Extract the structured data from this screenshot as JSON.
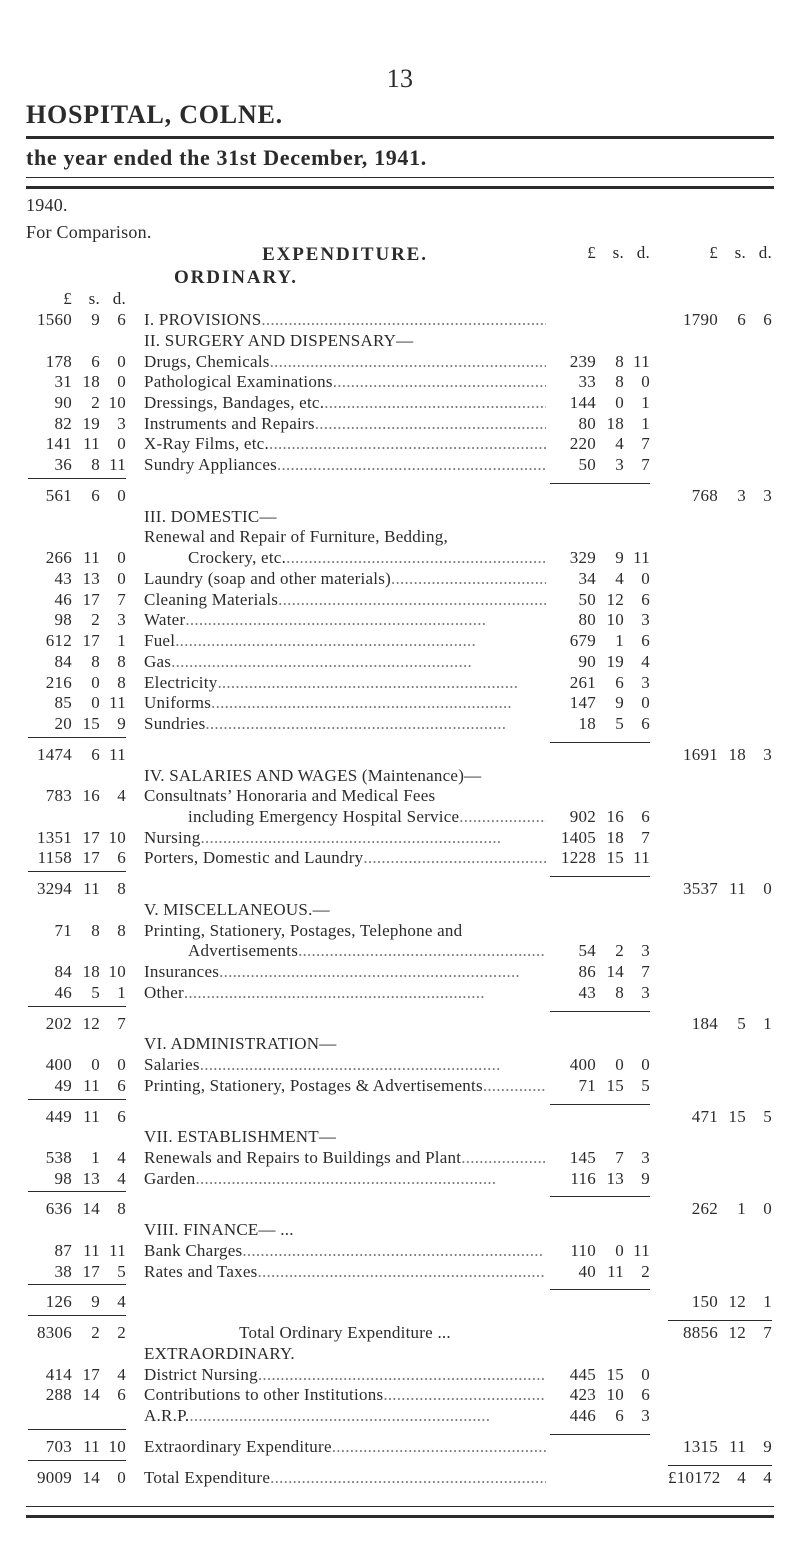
{
  "page_number": "13",
  "title_left": "HOSPITAL, COLNE.",
  "title_year": "the year ended the 31st December, 1941.",
  "meta_year": "1940.",
  "meta_compare": "For Comparison.",
  "hdr_expenditure": "EXPENDITURE.",
  "hdr_ordinary": "ORDINARY.",
  "col_L": "£",
  "col_s": "s.",
  "col_d": "d.",
  "sectionsLeft": [
    {
      "L": "1560",
      "s": "9",
      "d": "6"
    },
    {
      "L": "178",
      "s": "6",
      "d": "0"
    },
    {
      "L": "31",
      "s": "18",
      "d": "0"
    },
    {
      "L": "90",
      "s": "2",
      "d": "10"
    },
    {
      "L": "82",
      "s": "19",
      "d": "3"
    },
    {
      "L": "141",
      "s": "11",
      "d": "0"
    },
    {
      "L": "36",
      "s": "8",
      "d": "11"
    },
    {
      "L": "561",
      "s": "6",
      "d": "0",
      "rule": true
    },
    {
      "L": "266",
      "s": "11",
      "d": "0"
    },
    {
      "L": "43",
      "s": "13",
      "d": "0"
    },
    {
      "L": "46",
      "s": "17",
      "d": "7"
    },
    {
      "L": "98",
      "s": "2",
      "d": "3"
    },
    {
      "L": "612",
      "s": "17",
      "d": "1"
    },
    {
      "L": "84",
      "s": "8",
      "d": "8"
    },
    {
      "L": "216",
      "s": "0",
      "d": "8"
    },
    {
      "L": "85",
      "s": "0",
      "d": "11"
    },
    {
      "L": "20",
      "s": "15",
      "d": "9"
    },
    {
      "L": "1474",
      "s": "6",
      "d": "11",
      "rule": true
    },
    {
      "L": "783",
      "s": "16",
      "d": "4"
    },
    {
      "L": "1351",
      "s": "17",
      "d": "10"
    },
    {
      "L": "1158",
      "s": "17",
      "d": "6"
    },
    {
      "L": "3294",
      "s": "11",
      "d": "8",
      "rule": true
    },
    {
      "L": "71",
      "s": "8",
      "d": "8"
    },
    {
      "L": "84",
      "s": "18",
      "d": "10"
    },
    {
      "L": "46",
      "s": "5",
      "d": "1"
    },
    {
      "L": "202",
      "s": "12",
      "d": "7",
      "rule": true
    },
    {
      "L": "400",
      "s": "0",
      "d": "0"
    },
    {
      "L": "49",
      "s": "11",
      "d": "6"
    },
    {
      "L": "449",
      "s": "11",
      "d": "6",
      "rule": true
    },
    {
      "L": "538",
      "s": "1",
      "d": "4"
    },
    {
      "L": "98",
      "s": "13",
      "d": "4"
    },
    {
      "L": "636",
      "s": "14",
      "d": "8",
      "rule": true
    },
    {
      "L": "87",
      "s": "11",
      "d": "11"
    },
    {
      "L": "38",
      "s": "17",
      "d": "5"
    },
    {
      "L": "126",
      "s": "9",
      "d": "4",
      "rule": true
    },
    {
      "L": "8306",
      "s": "2",
      "d": "2",
      "rule": true
    },
    {
      "L": "414",
      "s": "17",
      "d": "4"
    },
    {
      "L": "288",
      "s": "14",
      "d": "6"
    },
    {
      "L": "703",
      "s": "11",
      "d": "10",
      "rule": true
    },
    {
      "L": "9009",
      "s": "14",
      "d": "0",
      "rule": true
    }
  ],
  "sections": {
    "I": {
      "head": "I.  PROVISIONS",
      "total": {
        "L": "1790",
        "s": "6",
        "d": "6"
      }
    },
    "II": {
      "head": "II.  SURGERY AND DISPENSARY—",
      "rows": [
        {
          "label": "Drugs, Chemicals",
          "L": "239",
          "s": "8",
          "d": "11"
        },
        {
          "label": "Pathological Examinations",
          "L": "33",
          "s": "8",
          "d": "0"
        },
        {
          "label": "Dressings, Bandages, etc.",
          "L": "144",
          "s": "0",
          "d": "1"
        },
        {
          "label": "Instruments and Repairs",
          "L": "80",
          "s": "18",
          "d": "1"
        },
        {
          "label": "X-Ray Films, etc.",
          "L": "220",
          "s": "4",
          "d": "7"
        },
        {
          "label": "Sundry Appliances",
          "L": "50",
          "s": "3",
          "d": "7"
        }
      ],
      "total": {
        "L": "768",
        "s": "3",
        "d": "3"
      }
    },
    "III": {
      "head": "III.  DOMESTIC—",
      "sub": "Renewal and Repair of Furniture, Bedding,",
      "rows": [
        {
          "label": "Crockery, etc.",
          "indent": 1,
          "L": "329",
          "s": "9",
          "d": "11"
        },
        {
          "label": "Laundry (soap and other materials)",
          "L": "34",
          "s": "4",
          "d": "0"
        },
        {
          "label": "Cleaning Materials",
          "L": "50",
          "s": "12",
          "d": "6"
        },
        {
          "label": "Water",
          "L": "80",
          "s": "10",
          "d": "3"
        },
        {
          "label": "Fuel",
          "L": "679",
          "s": "1",
          "d": "6"
        },
        {
          "label": "Gas",
          "L": "90",
          "s": "19",
          "d": "4"
        },
        {
          "label": "Electricity",
          "L": "261",
          "s": "6",
          "d": "3"
        },
        {
          "label": "Uniforms",
          "L": "147",
          "s": "9",
          "d": "0"
        },
        {
          "label": "Sundries",
          "L": "18",
          "s": "5",
          "d": "6"
        }
      ],
      "total": {
        "L": "1691",
        "s": "18",
        "d": "3"
      }
    },
    "IV": {
      "head": "IV.  SALARIES AND WAGES  (Maintenance)—",
      "rows": [
        {
          "label": "Consultnats’ Honoraria and Medical Fees"
        },
        {
          "label": "including Emergency Hospital Service",
          "indent": 1,
          "L": "902",
          "s": "16",
          "d": "6"
        },
        {
          "label": "Nursing",
          "L": "1405",
          "s": "18",
          "d": "7"
        },
        {
          "label": "Porters, Domestic and Laundry",
          "L": "1228",
          "s": "15",
          "d": "11"
        }
      ],
      "total": {
        "L": "3537",
        "s": "11",
        "d": "0"
      }
    },
    "V": {
      "head": "V.  MISCELLANEOUS.—",
      "rows": [
        {
          "label": "Printing, Stationery, Postages, Telephone and"
        },
        {
          "label": "Advertisements",
          "indent": 1,
          "L": "54",
          "s": "2",
          "d": "3"
        },
        {
          "label": "Insurances",
          "L": "86",
          "s": "14",
          "d": "7"
        },
        {
          "label": "Other",
          "L": "43",
          "s": "8",
          "d": "3"
        }
      ],
      "total": {
        "L": "184",
        "s": "5",
        "d": "1"
      }
    },
    "VI": {
      "head": "VI.  ADMINISTRATION—",
      "rows": [
        {
          "label": "Salaries",
          "L": "400",
          "s": "0",
          "d": "0"
        },
        {
          "label": "Printing, Stationery, Postages & Advertisements",
          "L": "71",
          "s": "15",
          "d": "5"
        }
      ],
      "total": {
        "L": "471",
        "s": "15",
        "d": "5"
      }
    },
    "VII": {
      "head": "VII.  ESTABLISHMENT—",
      "rows": [
        {
          "label": "Renewals and Repairs to Buildings and Plant",
          "L": "145",
          "s": "7",
          "d": "3"
        },
        {
          "label": "Garden",
          "L": "116",
          "s": "13",
          "d": "9"
        }
      ],
      "total": {
        "L": "262",
        "s": "1",
        "d": "0"
      }
    },
    "VIII": {
      "head": "VIII.  FINANCE—  ...",
      "rows": [
        {
          "label": "Bank Charges",
          "L": "110",
          "s": "0",
          "d": "11"
        },
        {
          "label": "Rates and Taxes",
          "L": "40",
          "s": "11",
          "d": "2"
        }
      ],
      "total": {
        "L": "150",
        "s": "12",
        "d": "1"
      }
    }
  },
  "total_ordinary_label": "Total Ordinary Expenditure  ...",
  "total_ordinary": {
    "L": "8856",
    "s": "12",
    "d": "7"
  },
  "extraordinary_head": "EXTRAORDINARY.",
  "extraordinary_rows": [
    {
      "label": "District Nursing",
      "L": "445",
      "s": "15",
      "d": "0"
    },
    {
      "label": "Contributions to other Institutions",
      "L": "423",
      "s": "10",
      "d": "6"
    },
    {
      "label": "A.R.P.",
      "L": "446",
      "s": "6",
      "d": "3"
    }
  ],
  "extraordinary_total_label": "Extraordinary Expenditure",
  "extraordinary_total": {
    "L": "1315",
    "s": "11",
    "d": "9"
  },
  "grand_label": "Total  Expenditure",
  "grand_total": {
    "L": "£10172",
    "s": "4",
    "d": "4"
  },
  "dots": "  ...................................................................",
  "colors": {
    "text": "#2b2b2b",
    "bg": "#ffffff",
    "rule": "#2b2b2b",
    "dots": "#777777"
  }
}
